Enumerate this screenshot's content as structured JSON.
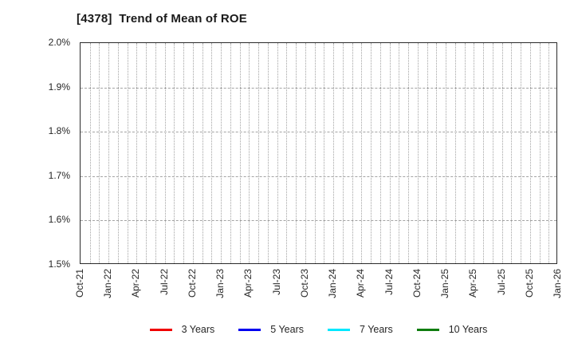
{
  "title": "[4378]  Trend of Mean of ROE",
  "chart_data": {
    "type": "line",
    "title": "[4378]  Trend of Mean of ROE",
    "x_tick_labels": [
      "Oct-21",
      "Jan-22",
      "Apr-22",
      "Jul-22",
      "Oct-22",
      "Jan-23",
      "Apr-23",
      "Jul-23",
      "Oct-23",
      "Jan-24",
      "Apr-24",
      "Jul-24",
      "Oct-24",
      "Jan-25",
      "Apr-25",
      "Jul-25",
      "Oct-25",
      "Jan-26"
    ],
    "months_per_labeled_tick": 3,
    "y_tick_labels": [
      "2.0%",
      "1.9%",
      "1.8%",
      "1.7%",
      "1.6%",
      "1.5%"
    ],
    "ylim": [
      1.5,
      2.0
    ],
    "y_unit": "%",
    "grid": true,
    "legend_position": "bottom",
    "series": [
      {
        "name": "3 Years",
        "color": "#f00000",
        "values": []
      },
      {
        "name": "5 Years",
        "color": "#0000f0",
        "values": []
      },
      {
        "name": "7 Years",
        "color": "#00e8ff",
        "values": []
      },
      {
        "name": "10 Years",
        "color": "#0f7d0f",
        "values": []
      }
    ]
  }
}
